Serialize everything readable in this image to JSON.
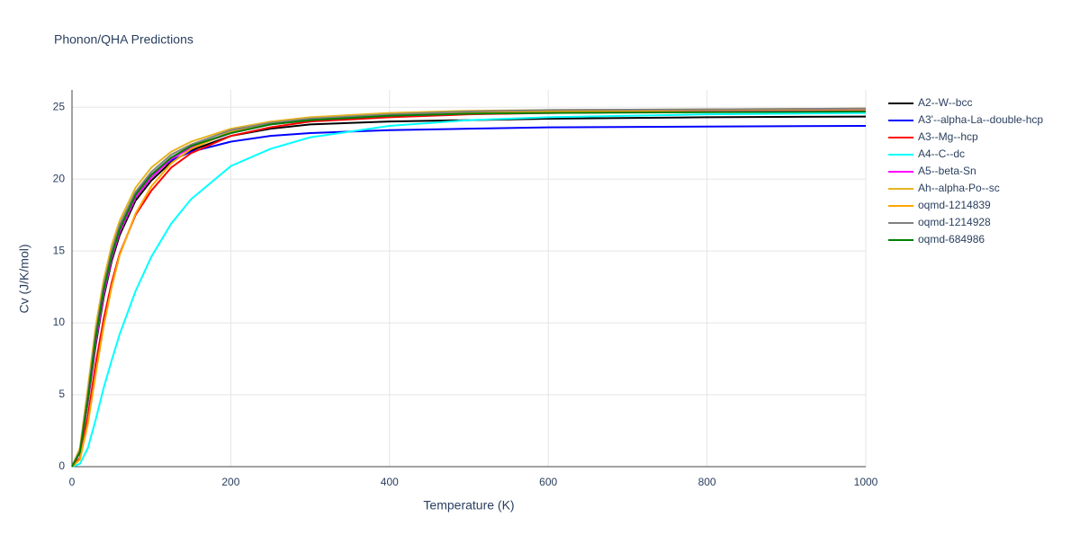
{
  "chart_data": {
    "type": "line",
    "title": "Phonon/QHA Predictions",
    "x_label": "Temperature (K)",
    "y_label": "Cv (J/K/mol)",
    "x": [
      0,
      10,
      20,
      30,
      40,
      50,
      60,
      80,
      100,
      125,
      150,
      200,
      250,
      300,
      400,
      500,
      600,
      800,
      1000
    ],
    "xlim": [
      0,
      1000
    ],
    "ylim": [
      0,
      26.2
    ],
    "xticks": [
      0,
      200,
      400,
      600,
      800,
      1000
    ],
    "yticks": [
      0,
      5,
      10,
      15,
      20,
      25
    ],
    "grid": true,
    "series": [
      {
        "name": "A2--W--bcc",
        "color": "#000000",
        "values": [
          0,
          1,
          4.5,
          8.5,
          11.8,
          14.3,
          16.1,
          18.5,
          19.9,
          21.2,
          22.0,
          23.0,
          23.5,
          23.8,
          24.0,
          24.1,
          24.2,
          24.3,
          24.35
        ]
      },
      {
        "name": "A3'--alpha-La--double-hcp",
        "color": "#0000ff",
        "values": [
          0,
          1.2,
          5,
          9,
          12.3,
          14.8,
          16.6,
          19,
          20.3,
          21.3,
          21.9,
          22.6,
          23.0,
          23.2,
          23.4,
          23.5,
          23.6,
          23.65,
          23.7
        ]
      },
      {
        "name": "A3--Mg--hcp",
        "color": "#ff0000",
        "values": [
          0,
          0.6,
          3.5,
          7.2,
          10.3,
          12.8,
          14.8,
          17.5,
          19.2,
          20.8,
          21.8,
          23.0,
          23.6,
          24.0,
          24.3,
          24.5,
          24.6,
          24.7,
          24.75
        ]
      },
      {
        "name": "A4--C--dc",
        "color": "#00ffff",
        "values": [
          0,
          0.2,
          1.3,
          3.3,
          5.5,
          7.4,
          9.2,
          12.2,
          14.6,
          16.9,
          18.6,
          20.9,
          22.1,
          22.9,
          23.7,
          24.1,
          24.3,
          24.5,
          24.6
        ]
      },
      {
        "name": "A5--beta-Sn",
        "color": "#ff00ff",
        "values": [
          0,
          1,
          4.5,
          8.7,
          12,
          14.5,
          16.3,
          18.7,
          20.1,
          21.4,
          22.2,
          23.2,
          23.8,
          24.1,
          24.4,
          24.55,
          24.6,
          24.7,
          24.75
        ]
      },
      {
        "name": "Ah--alpha-Po--sc",
        "color": "#e6b422",
        "values": [
          0,
          1.3,
          5.5,
          9.8,
          13,
          15.4,
          17.1,
          19.4,
          20.8,
          21.9,
          22.6,
          23.5,
          24.0,
          24.3,
          24.6,
          24.75,
          24.8,
          24.85,
          24.9
        ]
      },
      {
        "name": "oqmd-1214839",
        "color": "#ffa500",
        "values": [
          0,
          0.5,
          3,
          6.5,
          9.8,
          12.5,
          14.7,
          17.6,
          19.5,
          21.1,
          22.1,
          23.3,
          23.9,
          24.2,
          24.5,
          24.65,
          24.7,
          24.8,
          24.85
        ]
      },
      {
        "name": "oqmd-1214928",
        "color": "#808080",
        "values": [
          0,
          1.1,
          5,
          9.3,
          12.6,
          15,
          16.8,
          19.1,
          20.5,
          21.7,
          22.4,
          23.4,
          23.9,
          24.2,
          24.5,
          24.7,
          24.8,
          24.85,
          24.9
        ]
      },
      {
        "name": "oqmd-684986",
        "color": "#008000",
        "values": [
          0,
          1.0,
          4.7,
          9.0,
          12.3,
          14.7,
          16.5,
          18.9,
          20.3,
          21.5,
          22.3,
          23.2,
          23.8,
          24.1,
          24.4,
          24.55,
          24.6,
          24.65,
          24.7
        ]
      }
    ]
  }
}
